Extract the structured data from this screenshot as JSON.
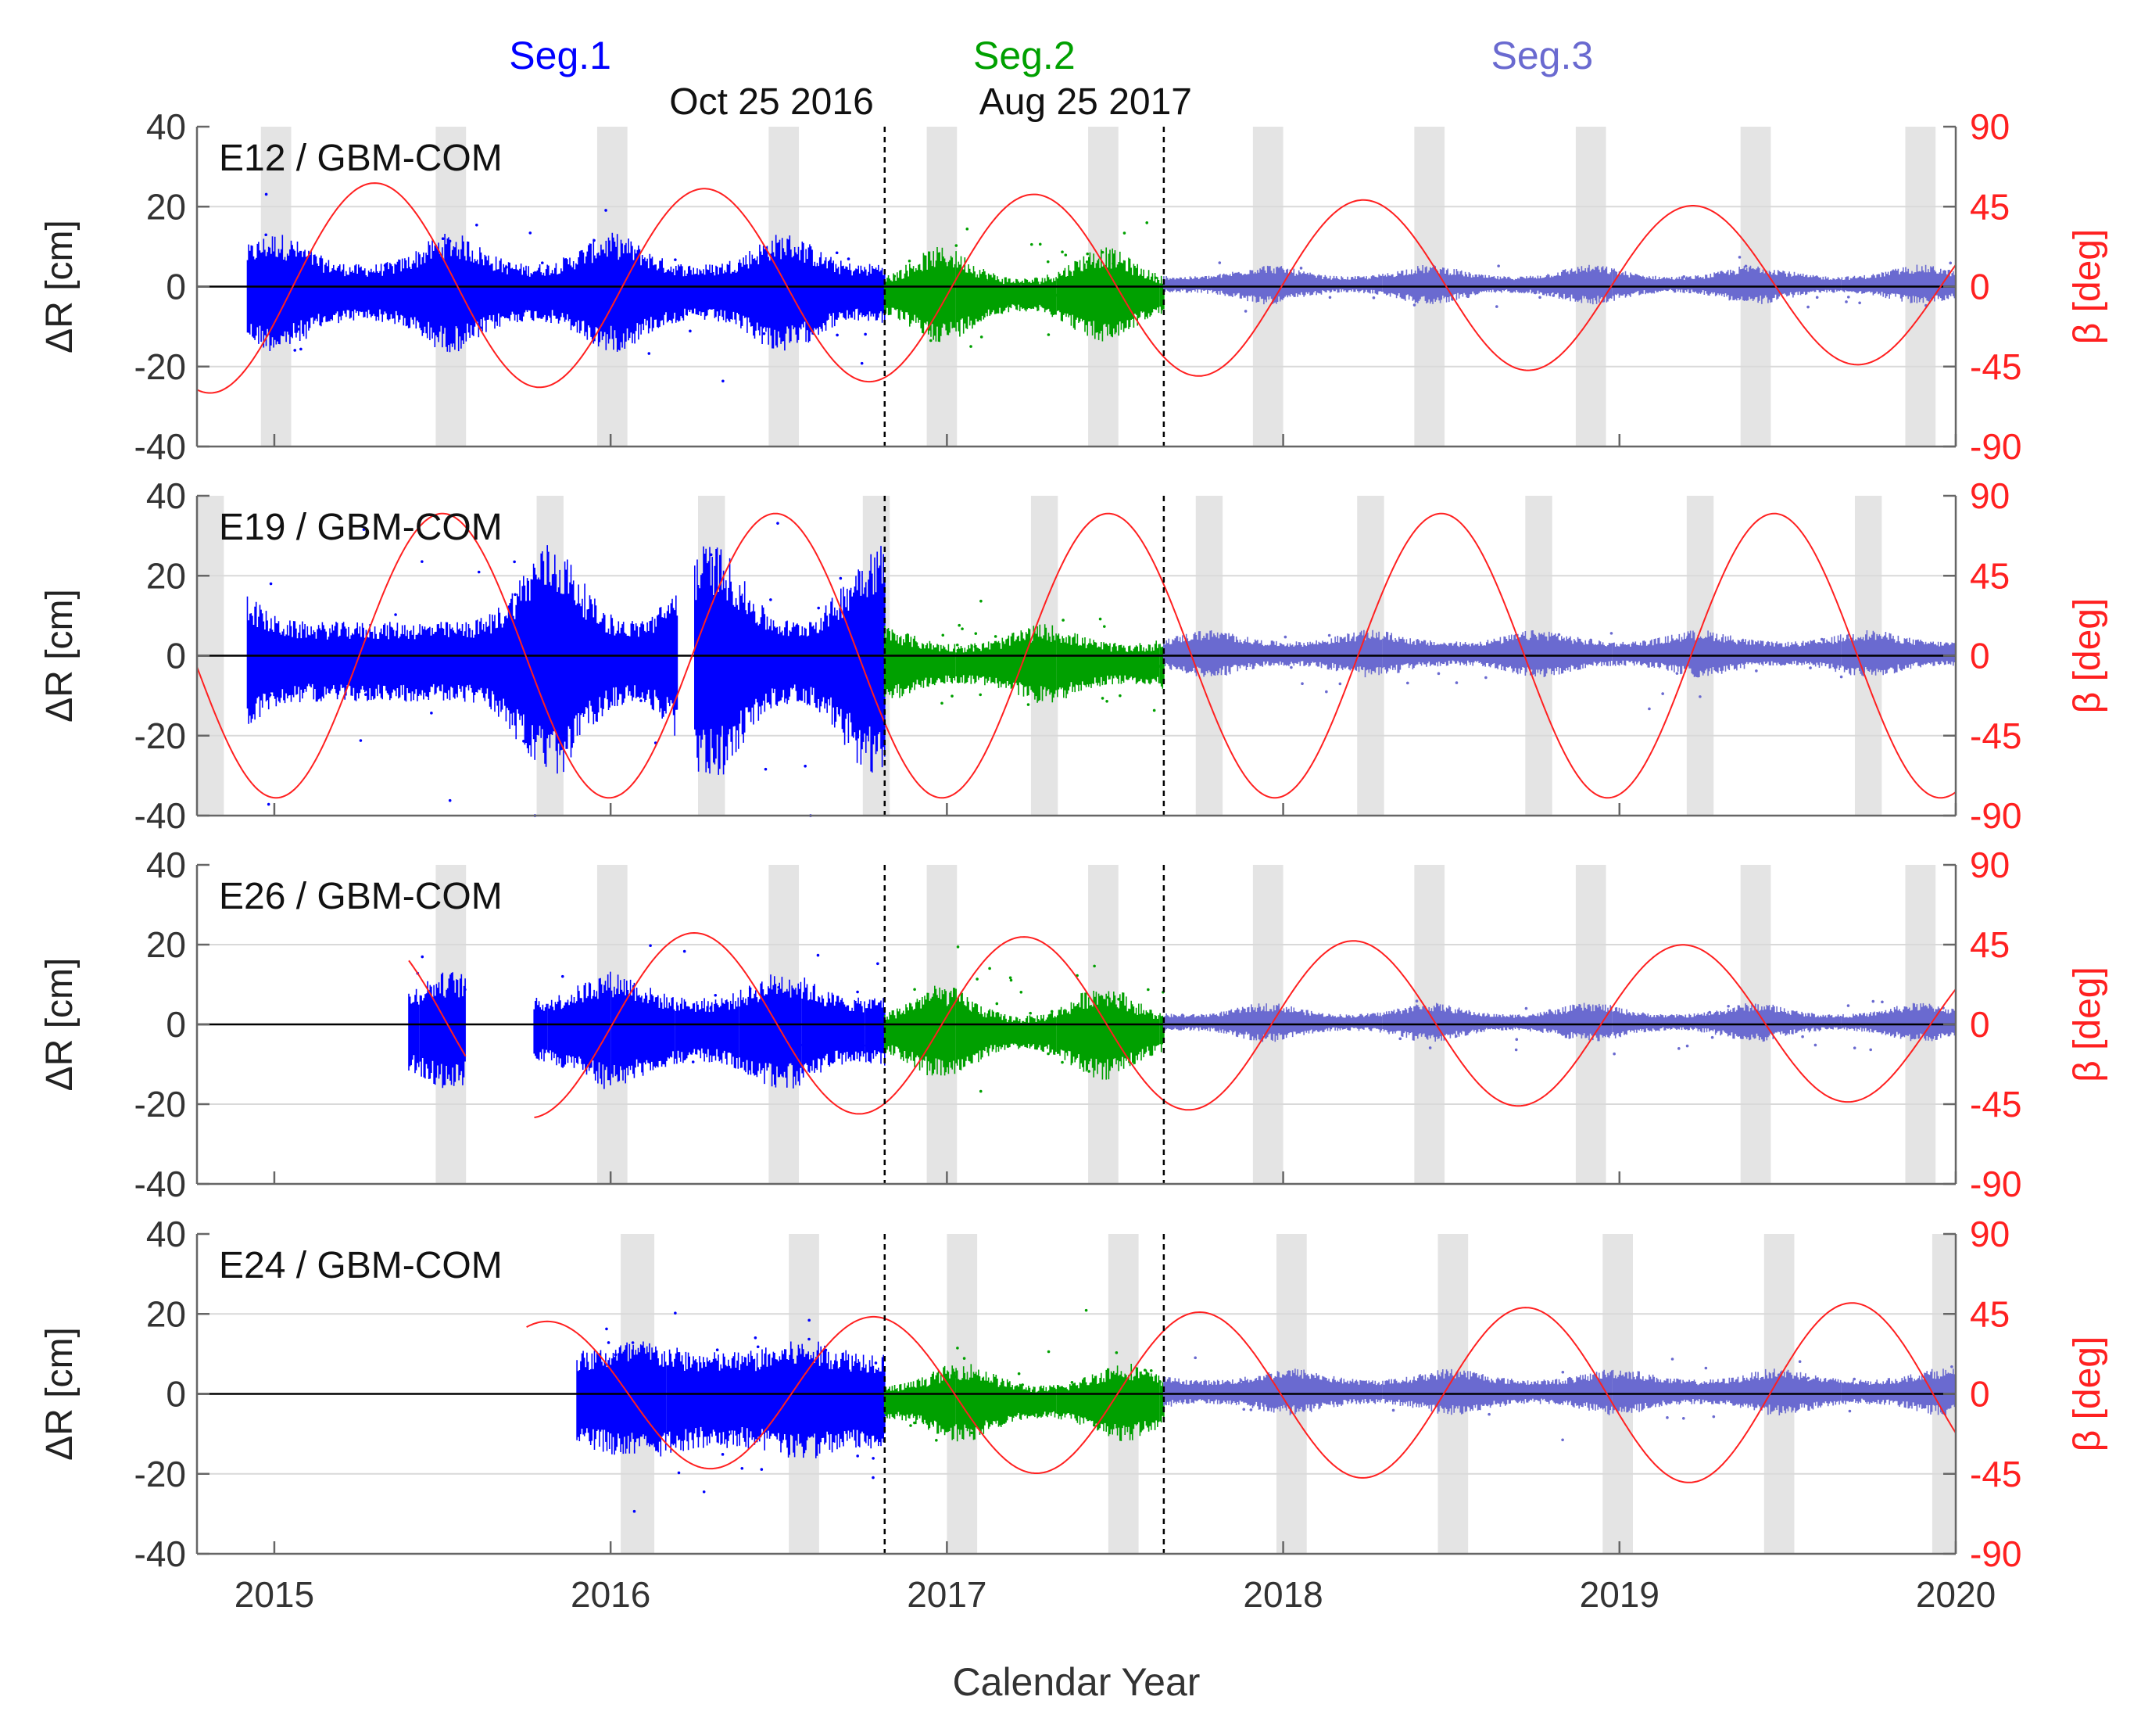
{
  "figure": {
    "x_label": "Calendar Year",
    "x_ticks": [
      "2015",
      "2016",
      "2017",
      "2018",
      "2019",
      "2020"
    ],
    "segment_labels": [
      {
        "label": "Seg.1",
        "color": "#0000ff",
        "center_year": 2015.85
      },
      {
        "label": "Seg.2",
        "color": "#00a000",
        "center_year": 2017.23
      },
      {
        "label": "Seg.3",
        "color": "#6a6ad0",
        "center_year": 2018.77
      }
    ],
    "boundary_labels": [
      "Oct 25 2016",
      "Aug 25 2017"
    ],
    "colors": {
      "seg1": "#0000ff",
      "seg2": "#00a000",
      "seg3": "#6a6ad0",
      "beta": "#ff2020",
      "shade": "#e4e4e4",
      "grid": "#d9d9d9",
      "boundary": "#000000"
    }
  },
  "chart_data": [
    {
      "type": "scatter",
      "title": "E12 / GBM-COM",
      "xlabel": "Calendar Year",
      "ylabel": "ΔR [cm]",
      "y2label": "β [deg]",
      "xlim": [
        2014.77,
        2020.0
      ],
      "ylim": [
        -40,
        40
      ],
      "y2lim": [
        -90,
        90
      ],
      "y_ticks": [
        "40",
        "20",
        "0",
        "-20",
        "-40"
      ],
      "y2_ticks": [
        "90",
        "45",
        "0",
        "-45",
        "-90"
      ],
      "segment_boundaries": [
        2016.815,
        2017.645
      ],
      "data_start": 2014.92,
      "gaps": [],
      "eclipse_seasons": [
        [
          2014.96,
          2015.05
        ],
        [
          2015.48,
          2015.57
        ],
        [
          2015.96,
          2016.05
        ],
        [
          2016.47,
          2016.56
        ],
        [
          2016.94,
          2017.03
        ],
        [
          2017.42,
          2017.51
        ],
        [
          2017.91,
          2018.0
        ],
        [
          2018.39,
          2018.48
        ],
        [
          2018.87,
          2018.96
        ],
        [
          2019.36,
          2019.45
        ],
        [
          2019.85,
          2019.94
        ]
      ],
      "series": [
        {
          "name": "Seg.1",
          "x_range": [
            2014.92,
            2016.815
          ],
          "noise_cm_base": 7,
          "noise_cm_peak": 15
        },
        {
          "name": "Seg.2",
          "x_range": [
            2016.815,
            2017.645
          ],
          "noise_cm_base": 4,
          "noise_cm_peak": 12
        },
        {
          "name": "Seg.3",
          "x_range": [
            2017.645,
            2020.0
          ],
          "noise_cm_base": 2,
          "noise_cm_peak": 5
        }
      ],
      "beta": {
        "phase_year": 2015.3,
        "period_years": 0.98,
        "amplitude_start_deg": 60,
        "amplitude_end_deg": 43,
        "x_range": [
          2014.77,
          2020.0
        ]
      }
    },
    {
      "type": "scatter",
      "title": "E19 / GBM-COM",
      "xlabel": "Calendar Year",
      "ylabel": "ΔR [cm]",
      "y2label": "β [deg]",
      "xlim": [
        2014.77,
        2020.0
      ],
      "ylim": [
        -40,
        40
      ],
      "y2lim": [
        -90,
        90
      ],
      "y_ticks": [
        "40",
        "20",
        "0",
        "-20",
        "-40"
      ],
      "y2_ticks": [
        "90",
        "45",
        "0",
        "-45",
        "-90"
      ],
      "segment_boundaries": [
        2016.815,
        2017.645
      ],
      "data_start": 2014.92,
      "gaps": [
        [
          2016.2,
          2016.25
        ]
      ],
      "eclipse_seasons": [
        [
          2014.77,
          2014.85
        ],
        [
          2015.78,
          2015.86
        ],
        [
          2016.26,
          2016.34
        ],
        [
          2016.75,
          2016.83
        ],
        [
          2017.25,
          2017.33
        ],
        [
          2017.74,
          2017.82
        ],
        [
          2018.22,
          2018.3
        ],
        [
          2018.72,
          2018.8
        ],
        [
          2019.2,
          2019.28
        ],
        [
          2019.7,
          2019.78
        ]
      ],
      "series": [
        {
          "name": "Seg.1",
          "x_range": [
            2014.92,
            2016.815
          ],
          "noise_cm_base": 10,
          "noise_cm_peak": 30
        },
        {
          "name": "Seg.2",
          "x_range": [
            2016.815,
            2017.645
          ],
          "noise_cm_base": 5,
          "noise_cm_peak": 10
        },
        {
          "name": "Seg.3",
          "x_range": [
            2017.645,
            2020.0
          ],
          "noise_cm_base": 3,
          "noise_cm_peak": 6
        }
      ],
      "beta": {
        "phase_year": 2015.5,
        "period_years": 0.99,
        "amplitude_start_deg": 80,
        "amplitude_end_deg": 80,
        "x_range": [
          2014.77,
          2020.0
        ]
      }
    },
    {
      "type": "scatter",
      "title": "E26 / GBM-COM",
      "xlabel": "Calendar Year",
      "ylabel": "ΔR [cm]",
      "y2label": "β [deg]",
      "xlim": [
        2014.77,
        2020.0
      ],
      "ylim": [
        -40,
        40
      ],
      "y2lim": [
        -90,
        90
      ],
      "y_ticks": [
        "40",
        "20",
        "0",
        "-20",
        "-40"
      ],
      "y2_ticks": [
        "90",
        "45",
        "0",
        "-45",
        "-90"
      ],
      "segment_boundaries": [
        2016.815,
        2017.645
      ],
      "data_start": 2015.4,
      "gaps": [
        [
          2015.57,
          2015.77
        ]
      ],
      "eclipse_seasons": [
        [
          2015.48,
          2015.57
        ],
        [
          2015.96,
          2016.05
        ],
        [
          2016.47,
          2016.56
        ],
        [
          2016.94,
          2017.03
        ],
        [
          2017.42,
          2017.51
        ],
        [
          2017.91,
          2018.0
        ],
        [
          2018.39,
          2018.48
        ],
        [
          2018.87,
          2018.96
        ],
        [
          2019.36,
          2019.45
        ],
        [
          2019.85,
          2019.94
        ]
      ],
      "series": [
        {
          "name": "Seg.1",
          "x_range": [
            2015.4,
            2016.815
          ],
          "noise_cm_base": 8,
          "noise_cm_peak": 15
        },
        {
          "name": "Seg.2",
          "x_range": [
            2016.815,
            2017.645
          ],
          "noise_cm_base": 4,
          "noise_cm_peak": 12
        },
        {
          "name": "Seg.3",
          "x_range": [
            2017.645,
            2020.0
          ],
          "noise_cm_base": 2,
          "noise_cm_peak": 5
        }
      ],
      "beta": {
        "phase_year": 2016.25,
        "period_years": 0.98,
        "amplitude_start_deg": 55,
        "amplitude_end_deg": 43,
        "x_range": [
          2015.4,
          2020.0
        ],
        "gaps": [
          [
            2015.57,
            2015.77
          ]
        ]
      }
    },
    {
      "type": "scatter",
      "title": "E24 / GBM-COM",
      "xlabel": "Calendar Year",
      "ylabel": "ΔR [cm]",
      "y2label": "β [deg]",
      "xlim": [
        2014.77,
        2020.0
      ],
      "ylim": [
        -40,
        40
      ],
      "y2lim": [
        -90,
        90
      ],
      "y_ticks": [
        "40",
        "20",
        "0",
        "-20",
        "-40"
      ],
      "y2_ticks": [
        "90",
        "45",
        "0",
        "-45",
        "-90"
      ],
      "segment_boundaries": [
        2016.815,
        2017.645
      ],
      "data_start": 2015.9,
      "gaps": [],
      "eclipse_seasons": [
        [
          2016.03,
          2016.13
        ],
        [
          2016.53,
          2016.62
        ],
        [
          2017.0,
          2017.09
        ],
        [
          2017.48,
          2017.57
        ],
        [
          2017.98,
          2018.07
        ],
        [
          2018.46,
          2018.55
        ],
        [
          2018.95,
          2019.04
        ],
        [
          2019.43,
          2019.52
        ],
        [
          2019.93,
          2020.0
        ]
      ],
      "series": [
        {
          "name": "Seg.1",
          "x_range": [
            2015.9,
            2016.815
          ],
          "noise_cm_base": 12,
          "noise_cm_peak": 15
        },
        {
          "name": "Seg.2",
          "x_range": [
            2016.815,
            2017.645
          ],
          "noise_cm_base": 4,
          "noise_cm_peak": 10
        },
        {
          "name": "Seg.3",
          "x_range": [
            2017.645,
            2020.0
          ],
          "noise_cm_base": 3,
          "noise_cm_peak": 6
        }
      ],
      "beta": {
        "phase_year": 2016.78,
        "period_years": 0.97,
        "amplitude_start_deg": 38,
        "amplitude_end_deg": 52,
        "x_range": [
          2015.75,
          2020.0
        ]
      }
    }
  ]
}
